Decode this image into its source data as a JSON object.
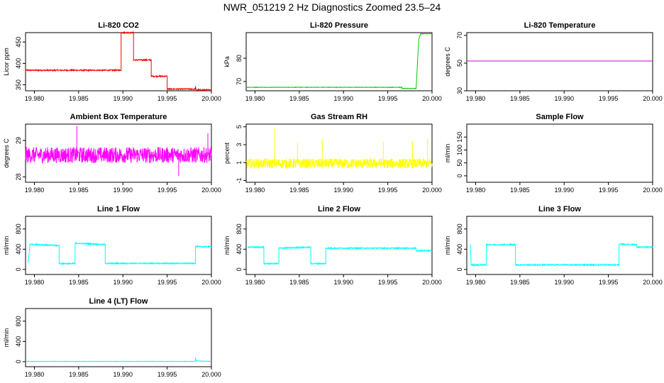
{
  "figure": {
    "title": "NWR_051219  2 Hz Diagnostics Zoomed 23.5–24"
  },
  "chart_data": [
    {
      "id": "co2",
      "type": "line",
      "title": "Li-820 CO2",
      "ylabel": "Licor ppm",
      "color": "#ff0000",
      "xlim": [
        19.979,
        20.0
      ],
      "ylim": [
        336,
        472
      ],
      "xticks": [
        "19.980",
        "19.985",
        "19.990",
        "19.995",
        "20.000"
      ],
      "yticks": [
        350,
        400,
        450
      ],
      "segments": [
        [
          19.979,
          384
        ],
        [
          19.9898,
          384
        ],
        [
          19.9898,
          472
        ],
        [
          19.9912,
          472
        ],
        [
          19.9912,
          408
        ],
        [
          19.9932,
          408
        ],
        [
          19.9932,
          370
        ],
        [
          19.995,
          370
        ],
        [
          19.995,
          340
        ],
        [
          19.9982,
          340
        ],
        [
          19.9982,
          348
        ],
        [
          19.99825,
          338
        ],
        [
          20.0,
          338
        ]
      ],
      "noise": 1.5
    },
    {
      "id": "pressure",
      "type": "line",
      "title": "Li-820 Pressure",
      "ylabel": "kPa",
      "color": "#00cc00",
      "xlim": [
        19.979,
        20.0
      ],
      "ylim": [
        66,
        91
      ],
      "xticks": [
        "19.980",
        "19.985",
        "19.990",
        "19.995",
        "20.000"
      ],
      "yticks": [
        70,
        80
      ],
      "segments": [
        [
          19.979,
          67.5
        ],
        [
          19.9966,
          67.5
        ],
        [
          19.9966,
          67.0
        ],
        [
          19.9982,
          67.0
        ],
        [
          19.9985,
          88
        ],
        [
          19.9987,
          90.5
        ],
        [
          20.0,
          90.5
        ]
      ],
      "noise": 0.1
    },
    {
      "id": "licor_temp",
      "type": "line",
      "title": "Li-820 Temperature",
      "ylabel": "degrees C",
      "color": "#cc00cc",
      "xlim": [
        19.979,
        20.0
      ],
      "ylim": [
        30,
        72
      ],
      "xticks": [
        "19.980",
        "19.985",
        "19.990",
        "19.995",
        "20.000"
      ],
      "yticks": [
        30,
        50,
        70
      ],
      "segments": [
        [
          19.979,
          51.5
        ],
        [
          20.0,
          51.5
        ]
      ],
      "noise": 0
    },
    {
      "id": "box_temp",
      "type": "line",
      "title": "Ambient Box Temperature",
      "ylabel": "degrees C",
      "color": "#ff00ff",
      "xlim": [
        19.979,
        20.0
      ],
      "ylim": [
        27.85,
        29.45
      ],
      "xticks": [
        "19.980",
        "19.985",
        "19.990",
        "19.995",
        "20.000"
      ],
      "yticks": [
        28.0,
        29.0
      ],
      "segments": [
        [
          19.979,
          28.6
        ],
        [
          20.0,
          28.6
        ]
      ],
      "noise": 0.22,
      "spikes": [
        [
          19.9848,
          29.4
        ],
        [
          19.9963,
          28.02
        ],
        [
          19.9996,
          29.2
        ]
      ]
    },
    {
      "id": "rh",
      "type": "line",
      "title": "Gas Stream RH",
      "ylabel": "percent",
      "color": "#ffff00",
      "xlim": [
        19.979,
        20.0
      ],
      "ylim": [
        -1.2,
        5.3
      ],
      "xticks": [
        "19.980",
        "19.985",
        "19.990",
        "19.995",
        "20.000"
      ],
      "yticks": [
        -1,
        1,
        3,
        5
      ],
      "segments": [
        [
          19.979,
          0.9
        ],
        [
          20.0,
          0.9
        ]
      ],
      "noise": 0.55,
      "spikes": [
        [
          19.9822,
          4.8
        ],
        [
          19.9848,
          3.2
        ],
        [
          19.9876,
          3.6
        ],
        [
          19.9945,
          3.3
        ],
        [
          19.9978,
          3.4
        ],
        [
          19.9995,
          3.7
        ]
      ]
    },
    {
      "id": "sample_flow",
      "type": "line",
      "title": "Sample Flow",
      "ylabel": "ml/min",
      "color": "#0000ff",
      "xlim": [
        19.979,
        20.0
      ],
      "ylim": [
        -25,
        200
      ],
      "xticks": [
        "19.980",
        "19.985",
        "19.990",
        "19.995",
        "20.000"
      ],
      "yticks": [
        0,
        50,
        100,
        150
      ],
      "segments": [],
      "noise": 0
    },
    {
      "id": "line1",
      "type": "line",
      "title": "Line 1 Flow",
      "ylabel": "ml/min",
      "color": "#00ffff",
      "xlim": [
        19.979,
        20.0
      ],
      "ylim": [
        -100,
        1050
      ],
      "xticks": [
        "19.980",
        "19.985",
        "19.990",
        "19.995",
        "20.000"
      ],
      "yticks": [
        0,
        400,
        800
      ],
      "segments": [
        [
          19.9793,
          120
        ],
        [
          19.9795,
          500
        ],
        [
          19.9828,
          470
        ],
        [
          19.9828,
          115
        ],
        [
          19.9846,
          115
        ],
        [
          19.9846,
          520
        ],
        [
          19.988,
          490
        ],
        [
          19.988,
          120
        ],
        [
          19.9982,
          120
        ],
        [
          19.9982,
          450
        ],
        [
          20.0,
          450
        ]
      ],
      "noise": 12
    },
    {
      "id": "line2",
      "type": "line",
      "title": "Line 2 Flow",
      "ylabel": "ml/min",
      "color": "#00ffff",
      "xlim": [
        19.979,
        20.0
      ],
      "ylim": [
        -100,
        1050
      ],
      "xticks": [
        "19.980",
        "19.985",
        "19.990",
        "19.995",
        "20.000"
      ],
      "yticks": [
        0,
        400,
        800
      ],
      "segments": [
        [
          19.9792,
          440
        ],
        [
          19.981,
          440
        ],
        [
          19.981,
          115
        ],
        [
          19.9827,
          115
        ],
        [
          19.9827,
          420
        ],
        [
          19.9863,
          440
        ],
        [
          19.9863,
          115
        ],
        [
          19.988,
          115
        ],
        [
          19.988,
          420
        ],
        [
          19.9982,
          420
        ],
        [
          19.9982,
          370
        ],
        [
          20.0,
          370
        ]
      ],
      "noise": 12
    },
    {
      "id": "line3",
      "type": "line",
      "title": "Line 3 Flow",
      "ylabel": "ml/min",
      "color": "#00ffff",
      "xlim": [
        19.979,
        20.0
      ],
      "ylim": [
        -100,
        1050
      ],
      "xticks": [
        "19.980",
        "19.985",
        "19.990",
        "19.995",
        "20.000"
      ],
      "yticks": [
        0,
        400,
        800
      ],
      "segments": [
        [
          19.9794,
          500
        ],
        [
          19.9795,
          90
        ],
        [
          19.9812,
          90
        ],
        [
          19.9812,
          490
        ],
        [
          19.9845,
          490
        ],
        [
          19.9845,
          90
        ],
        [
          19.9962,
          90
        ],
        [
          19.9962,
          500
        ],
        [
          19.9982,
          490
        ],
        [
          19.9982,
          440
        ],
        [
          20.0,
          440
        ]
      ],
      "noise": 12
    },
    {
      "id": "line4",
      "type": "line",
      "title": "Line 4 (LT) Flow",
      "ylabel": "ml/min",
      "color": "#00ffff",
      "xlim": [
        19.979,
        20.0
      ],
      "ylim": [
        -100,
        1050
      ],
      "xticks": [
        "19.980",
        "19.985",
        "19.990",
        "19.995",
        "20.000"
      ],
      "yticks": [
        0,
        400,
        800
      ],
      "segments": [
        [
          19.979,
          5
        ],
        [
          19.9982,
          5
        ],
        [
          19.99822,
          80
        ],
        [
          19.99826,
          15
        ],
        [
          20.0,
          5
        ]
      ],
      "noise": 3
    }
  ]
}
